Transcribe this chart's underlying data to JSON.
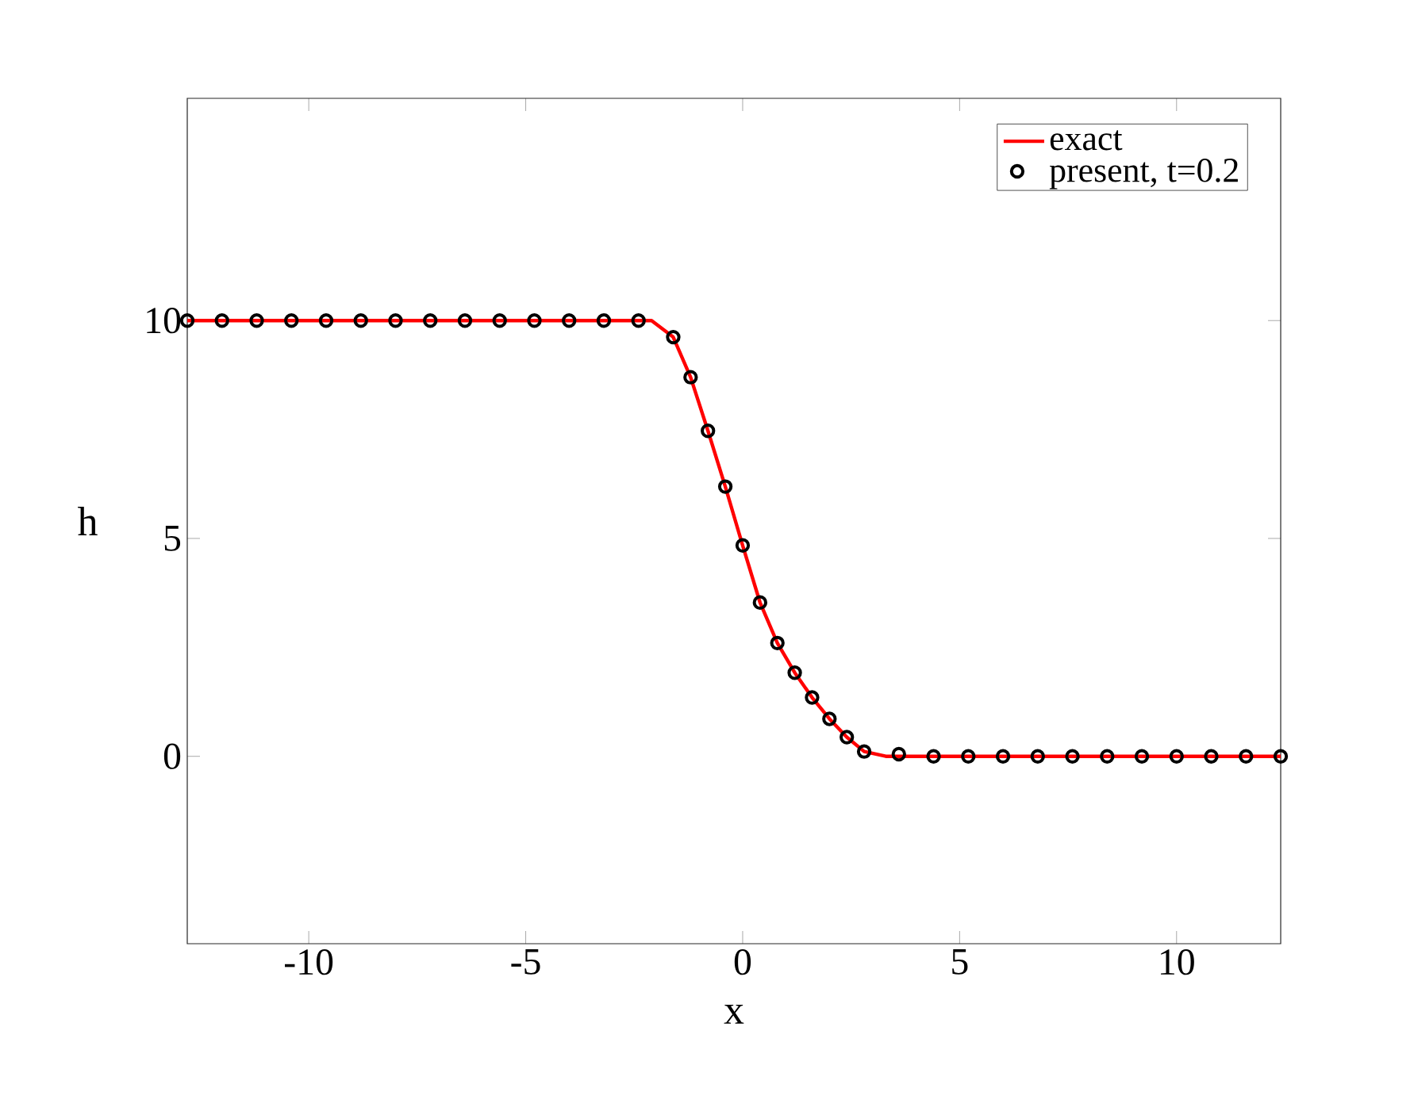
{
  "chart_data": {
    "type": "line",
    "xlabel": "x",
    "ylabel": "h",
    "xlim": [
      -12.8,
      12.4
    ],
    "ylim": [
      -4.3,
      15.1
    ],
    "xticks": [
      -10,
      -5,
      0,
      5,
      10
    ],
    "yticks": [
      0,
      5,
      10
    ],
    "legend": "top right",
    "grid": false,
    "series": [
      {
        "name": "exact",
        "color": "#ff0000",
        "line_style": "solid",
        "marker": "none",
        "x": [
          -12.8,
          -2.1,
          -1.6,
          -1.2,
          -0.8,
          -0.4,
          0,
          0.4,
          0.8,
          1.2,
          1.6,
          2.0,
          2.4,
          2.8,
          3.3,
          12.4
        ],
        "values": [
          10,
          10,
          9.62,
          8.7,
          7.47,
          6.19,
          4.84,
          3.53,
          2.6,
          1.92,
          1.35,
          0.86,
          0.44,
          0.11,
          0,
          0
        ]
      },
      {
        "name": "present, t=0.2",
        "type": "scatter",
        "color": "#000000",
        "marker": "circle",
        "x": [
          -12.8,
          -12.0,
          -11.2,
          -10.4,
          -9.6,
          -8.8,
          -8.0,
          -7.2,
          -6.4,
          -5.6,
          -4.8,
          -4.0,
          -3.2,
          -2.4,
          -1.6,
          -1.2,
          -0.8,
          -0.4,
          0,
          0.4,
          0.8,
          1.2,
          1.6,
          2.0,
          2.4,
          2.8,
          3.6,
          4.4,
          5.2,
          6.0,
          6.8,
          7.6,
          8.4,
          9.2,
          10.0,
          10.8,
          11.6,
          12.4
        ],
        "values": [
          10,
          10,
          10,
          10,
          10,
          10,
          10,
          10,
          10,
          10,
          10,
          10,
          10,
          10,
          9.62,
          8.7,
          7.47,
          6.19,
          4.84,
          3.53,
          2.6,
          1.92,
          1.35,
          0.86,
          0.44,
          0.11,
          0.05,
          0,
          0,
          0,
          0,
          0,
          0,
          0,
          0,
          0,
          0,
          0
        ]
      }
    ]
  }
}
